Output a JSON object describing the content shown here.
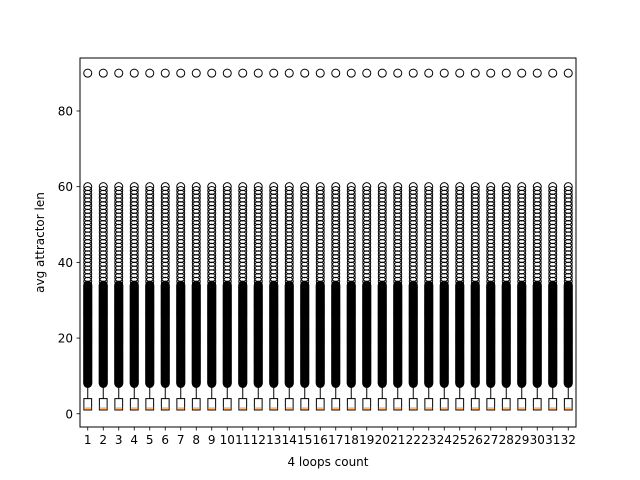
{
  "chart_data": {
    "type": "box",
    "title": "",
    "xlabel": "4 loops count",
    "ylabel": "avg attractor len",
    "categories": [
      "1",
      "2",
      "3",
      "4",
      "5",
      "6",
      "7",
      "8",
      "9",
      "10",
      "11",
      "12",
      "13",
      "14",
      "15",
      "16",
      "17",
      "18",
      "19",
      "20",
      "21",
      "22",
      "23",
      "24",
      "25",
      "26",
      "27",
      "28",
      "29",
      "30",
      "31",
      "32"
    ],
    "ylim": [
      -3.5,
      94
    ],
    "yticks": [
      0,
      20,
      40,
      60,
      80
    ],
    "box_stats": {
      "q1": 1,
      "median": 1.5,
      "q3": 4,
      "whisker_low": 1,
      "whisker_high": 8
    },
    "outliers": {
      "dense_range": [
        8,
        34
      ],
      "sparse_values": [
        35,
        36,
        37,
        38,
        39,
        40,
        41,
        42,
        43,
        44,
        45,
        46,
        47,
        48,
        49,
        50,
        51,
        52,
        53,
        54,
        55,
        56,
        57,
        58,
        59,
        60
      ],
      "extreme_value": 90
    },
    "colors": {
      "box": "#000000",
      "median": "#ff7f0e",
      "flier": "#000000",
      "background": "#ffffff"
    }
  }
}
